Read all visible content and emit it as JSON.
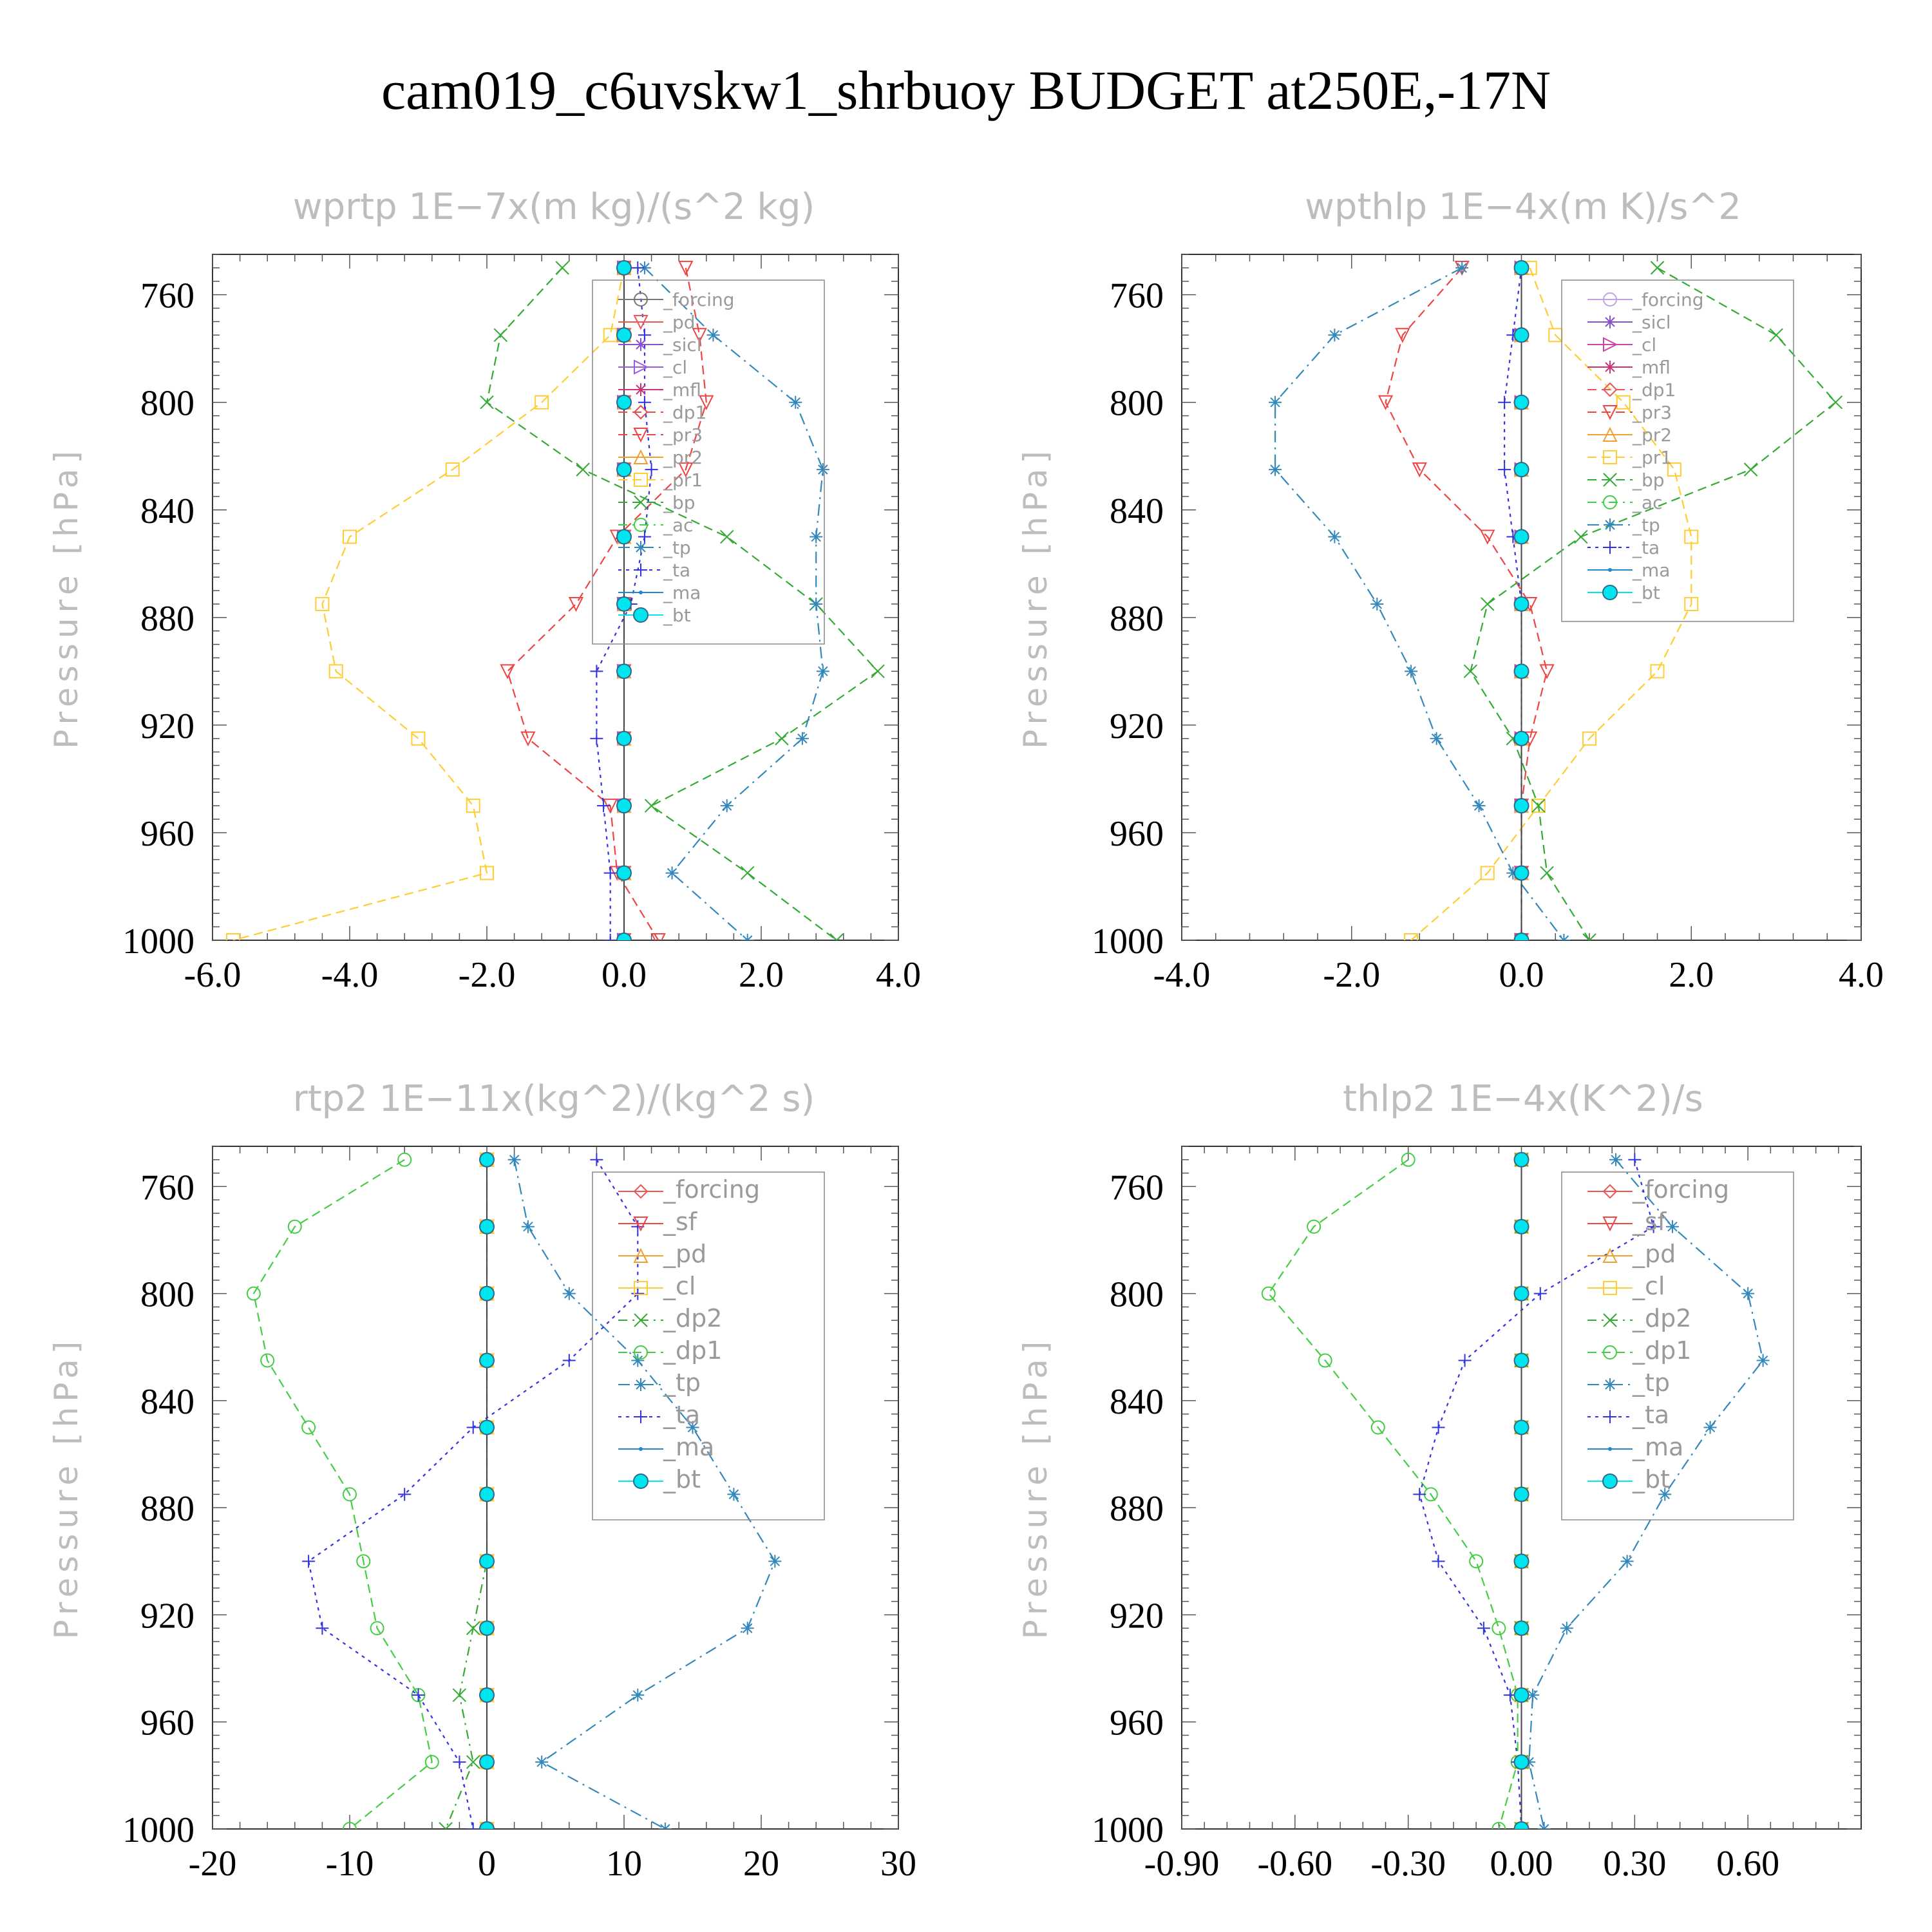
{
  "title": "cam019_c6uvskw1_shrbuoy  BUDGET at250E,-17N",
  "chart_data": [
    {
      "type": "line",
      "title": "wprtp   1E−7x(m kg)/(s^2 kg)",
      "ylabel": "Pressure [hPa]",
      "xlim": [
        -6.0,
        4.0
      ],
      "ylim": [
        1000,
        745
      ],
      "xticks": [
        -6.0,
        -4.0,
        -2.0,
        0.0,
        2.0,
        4.0
      ],
      "xtick_labels": [
        "-6.0",
        "-4.0",
        "-2.0",
        "0.0",
        "2.0",
        "4.0"
      ],
      "yticks": [
        760,
        800,
        840,
        880,
        920,
        960,
        1000
      ],
      "legend_position": "top-right",
      "y": [
        750,
        775,
        800,
        825,
        850,
        875,
        900,
        925,
        950,
        975,
        1000
      ],
      "series": [
        {
          "name": "_forcing",
          "color": "#777777",
          "marker": "circle",
          "values": [
            0,
            0,
            0,
            0,
            0,
            0,
            0,
            0,
            0,
            0,
            0
          ]
        },
        {
          "name": "_pd",
          "color": "#ee5555",
          "marker": "tri-down",
          "values": [
            0,
            0,
            0,
            0,
            0,
            0,
            0,
            0,
            0,
            0,
            0
          ]
        },
        {
          "name": "_sicl",
          "color": "#8a4fcf",
          "marker": "star",
          "values": [
            0,
            0,
            0,
            0,
            0,
            0,
            0,
            0,
            0,
            0,
            0
          ]
        },
        {
          "name": "_cl",
          "color": "#9a5fd8",
          "marker": "tri-right",
          "values": [
            0,
            0,
            0,
            0,
            0,
            0,
            0,
            0,
            0,
            0,
            0
          ]
        },
        {
          "name": "_mfl",
          "color": "#cc3377",
          "marker": "star",
          "values": [
            0,
            0,
            0,
            0,
            0,
            0,
            0,
            0,
            0,
            0,
            0
          ]
        },
        {
          "name": "_dp1",
          "color": "#e84a4a",
          "marker": "diamond",
          "values": [
            0,
            0,
            0,
            0,
            0,
            0,
            0,
            0,
            0,
            0,
            0
          ]
        },
        {
          "name": "_pr3",
          "color": "#ee4444",
          "marker": "tri-down",
          "values": [
            0.9,
            1.1,
            1.2,
            0.9,
            -0.1,
            -0.7,
            -1.7,
            -1.4,
            -0.2,
            -0.1,
            0.5
          ]
        },
        {
          "name": "_pr2",
          "color": "#f0a030",
          "marker": "tri-up",
          "values": [
            0,
            0,
            0,
            0,
            0,
            0,
            0,
            0,
            0,
            0,
            0
          ]
        },
        {
          "name": "_pr1",
          "color": "#ffcc33",
          "marker": "square",
          "values": [
            0,
            -0.2,
            -1.2,
            -2.5,
            -4.0,
            -4.4,
            -4.2,
            -3.0,
            -2.2,
            -2.0,
            -5.7
          ]
        },
        {
          "name": "_bp",
          "color": "#33aa33",
          "marker": "x",
          "values": [
            -0.9,
            -1.8,
            -2.0,
            -0.6,
            1.5,
            2.8,
            3.7,
            2.3,
            0.4,
            1.8,
            3.1
          ]
        },
        {
          "name": "_ac",
          "color": "#44cc44",
          "marker": "circle",
          "values": [
            0,
            0,
            0,
            0,
            0,
            0,
            0,
            0,
            0,
            0,
            0
          ]
        },
        {
          "name": "_tp",
          "color": "#3388bb",
          "marker": "star",
          "values": [
            0.3,
            1.3,
            2.5,
            2.9,
            2.8,
            2.8,
            2.9,
            2.6,
            1.5,
            0.7,
            1.8
          ]
        },
        {
          "name": "_ta",
          "color": "#3333dd",
          "marker": "plus",
          "values": [
            0.2,
            0.3,
            0.3,
            0.4,
            0.3,
            0.1,
            -0.4,
            -0.4,
            -0.3,
            -0.2,
            -0.2
          ]
        },
        {
          "name": "_ma",
          "color": "#2288cc",
          "marker": "dot",
          "values": [
            0,
            0,
            0,
            0,
            0,
            0,
            0,
            0,
            0,
            0,
            0
          ]
        },
        {
          "name": "_bt",
          "color": "#00e5ee",
          "marker": "filled-circle",
          "values": [
            0,
            0,
            0,
            0,
            0,
            0,
            0,
            0,
            0,
            0,
            0
          ]
        }
      ]
    },
    {
      "type": "line",
      "title": "wpthlp   1E−4x(m K)/s^2",
      "ylabel": "Pressure [hPa]",
      "xlim": [
        -4.0,
        4.0
      ],
      "ylim": [
        1000,
        745
      ],
      "xticks": [
        -4.0,
        -2.0,
        0.0,
        2.0,
        4.0
      ],
      "xtick_labels": [
        "-4.0",
        "-2.0",
        "0.0",
        "2.0",
        "4.0"
      ],
      "yticks": [
        760,
        800,
        840,
        880,
        920,
        960,
        1000
      ],
      "legend_position": "top-right",
      "y": [
        750,
        775,
        800,
        825,
        850,
        875,
        900,
        925,
        950,
        975,
        1000
      ],
      "series": [
        {
          "name": "_forcing",
          "color": "#c0a0e0",
          "marker": "circle",
          "values": [
            0,
            0,
            0,
            0,
            0,
            0,
            0,
            0,
            0,
            0,
            0
          ]
        },
        {
          "name": "_sicl",
          "color": "#8a4fcf",
          "marker": "star",
          "values": [
            0,
            0,
            0,
            0,
            0,
            0,
            0,
            0,
            0,
            0,
            0
          ]
        },
        {
          "name": "_cl",
          "color": "#cc44aa",
          "marker": "tri-right",
          "values": [
            0,
            0,
            0,
            0,
            0,
            0,
            0,
            0,
            0,
            0,
            0
          ]
        },
        {
          "name": "_mfl",
          "color": "#cc3377",
          "marker": "star",
          "values": [
            0,
            0,
            0,
            0,
            0,
            0,
            0,
            0,
            0,
            0,
            0
          ]
        },
        {
          "name": "_dp1",
          "color": "#ee5555",
          "marker": "diamond",
          "values": [
            0,
            0,
            0,
            0,
            0,
            0,
            0,
            0,
            0,
            0,
            0
          ]
        },
        {
          "name": "_pr3",
          "color": "#ee4444",
          "marker": "tri-down",
          "values": [
            -0.7,
            -1.4,
            -1.6,
            -1.2,
            -0.4,
            0.1,
            0.3,
            0.1,
            0,
            0,
            0
          ]
        },
        {
          "name": "_pr2",
          "color": "#f0a030",
          "marker": "tri-up",
          "values": [
            0,
            0,
            0,
            0,
            0,
            0,
            0,
            0,
            0,
            0,
            0
          ]
        },
        {
          "name": "_pr1",
          "color": "#ffcc33",
          "marker": "square",
          "values": [
            0.1,
            0.4,
            1.2,
            1.8,
            2.0,
            2.0,
            1.6,
            0.8,
            0.2,
            -0.4,
            -1.3
          ]
        },
        {
          "name": "_bp",
          "color": "#33aa33",
          "marker": "x",
          "values": [
            1.6,
            3.0,
            3.7,
            2.7,
            0.7,
            -0.4,
            -0.6,
            -0.1,
            0.2,
            0.3,
            0.8
          ]
        },
        {
          "name": "_ac",
          "color": "#44cc44",
          "marker": "circle",
          "values": [
            0,
            0,
            0,
            0,
            0,
            0,
            0,
            0,
            0,
            0,
            0
          ]
        },
        {
          "name": "_tp",
          "color": "#3388bb",
          "marker": "star",
          "values": [
            -0.7,
            -2.2,
            -2.9,
            -2.9,
            -2.2,
            -1.7,
            -1.3,
            -1.0,
            -0.5,
            -0.1,
            0.5
          ]
        },
        {
          "name": "_ta",
          "color": "#3333dd",
          "marker": "plus",
          "values": [
            0,
            -0.1,
            -0.2,
            -0.2,
            -0.1,
            0,
            0,
            0,
            0,
            0,
            0
          ]
        },
        {
          "name": "_ma",
          "color": "#2288cc",
          "marker": "dot",
          "values": [
            0,
            0,
            0,
            0,
            0,
            0,
            0,
            0,
            0,
            0,
            0
          ]
        },
        {
          "name": "_bt",
          "color": "#00e5ee",
          "marker": "filled-circle",
          "values": [
            0,
            0,
            0,
            0,
            0,
            0,
            0,
            0,
            0,
            0,
            0
          ]
        }
      ]
    },
    {
      "type": "line",
      "title": "rtp2   1E−11x(kg^2)/(kg^2 s)",
      "ylabel": "Pressure [hPa]",
      "xlim": [
        -20,
        30
      ],
      "ylim": [
        1000,
        745
      ],
      "xticks": [
        -20,
        -10,
        0,
        10,
        20,
        30
      ],
      "xtick_labels": [
        "-20",
        "-10",
        "0",
        "10",
        "20",
        "30"
      ],
      "yticks": [
        760,
        800,
        840,
        880,
        920,
        960,
        1000
      ],
      "legend_position": "top-right",
      "y": [
        750,
        775,
        800,
        825,
        850,
        875,
        900,
        925,
        950,
        975,
        1000
      ],
      "series": [
        {
          "name": "_forcing",
          "color": "#ee5555",
          "marker": "diamond",
          "values": [
            0,
            0,
            0,
            0,
            0,
            0,
            0,
            0,
            0,
            0,
            0
          ]
        },
        {
          "name": "_sf",
          "color": "#ee4444",
          "marker": "tri-down",
          "values": [
            0,
            0,
            0,
            0,
            0,
            0,
            0,
            0,
            0,
            0,
            0
          ]
        },
        {
          "name": "_pd",
          "color": "#f0a030",
          "marker": "tri-up",
          "values": [
            0,
            0,
            0,
            0,
            0,
            0,
            0,
            0,
            0,
            0,
            0
          ]
        },
        {
          "name": "_cl",
          "color": "#ffcc33",
          "marker": "square",
          "values": [
            0,
            0,
            0,
            0,
            0,
            0,
            0,
            0,
            0,
            0,
            0
          ]
        },
        {
          "name": "_dp2",
          "color": "#33aa33",
          "marker": "x",
          "values": [
            0,
            0,
            0,
            0,
            0,
            0,
            0,
            -1,
            -2,
            -1,
            -3
          ]
        },
        {
          "name": "_dp1",
          "color": "#44cc44",
          "marker": "circle",
          "values": [
            -6,
            -14,
            -17,
            -16,
            -13,
            -10,
            -9,
            -8,
            -5,
            -4,
            -10
          ]
        },
        {
          "name": "_tp",
          "color": "#3388bb",
          "marker": "star",
          "values": [
            2,
            3,
            6,
            11,
            15,
            18,
            21,
            19,
            11,
            4,
            13
          ]
        },
        {
          "name": "_ta",
          "color": "#3333dd",
          "marker": "plus",
          "values": [
            8,
            11,
            11,
            6,
            -1,
            -6,
            -13,
            -12,
            -5,
            -2,
            -1
          ]
        },
        {
          "name": "_ma",
          "color": "#2288cc",
          "marker": "dot",
          "values": [
            0,
            0,
            0,
            0,
            0,
            0,
            0,
            0,
            0,
            0,
            0
          ]
        },
        {
          "name": "_bt",
          "color": "#00e5ee",
          "marker": "filled-circle",
          "values": [
            0,
            0,
            0,
            0,
            0,
            0,
            0,
            0,
            0,
            0,
            0
          ]
        }
      ]
    },
    {
      "type": "line",
      "title": "thlp2   1E−4x(K^2)/s",
      "ylabel": "Pressure [hPa]",
      "xlim": [
        -0.9,
        0.9
      ],
      "ylim": [
        1000,
        745
      ],
      "xticks": [
        -0.9,
        -0.6,
        -0.3,
        0.0,
        0.3,
        0.6
      ],
      "xtick_labels": [
        "-0.90",
        "-0.60",
        "-0.30",
        "0.00",
        "0.30",
        "0.60"
      ],
      "yticks": [
        760,
        800,
        840,
        880,
        920,
        960,
        1000
      ],
      "legend_position": "top-right",
      "y": [
        750,
        775,
        800,
        825,
        850,
        875,
        900,
        925,
        950,
        975,
        1000
      ],
      "series": [
        {
          "name": "_forcing",
          "color": "#ee5555",
          "marker": "diamond",
          "values": [
            0,
            0,
            0,
            0,
            0,
            0,
            0,
            0,
            0,
            0,
            0
          ]
        },
        {
          "name": "_sf",
          "color": "#ee4444",
          "marker": "tri-down",
          "values": [
            0,
            0,
            0,
            0,
            0,
            0,
            0,
            0,
            0,
            0,
            0
          ]
        },
        {
          "name": "_pd",
          "color": "#f0a030",
          "marker": "tri-up",
          "values": [
            0,
            0,
            0,
            0,
            0,
            0,
            0,
            0,
            0,
            0,
            0
          ]
        },
        {
          "name": "_cl",
          "color": "#ffcc33",
          "marker": "square",
          "values": [
            0,
            0,
            0,
            0,
            0,
            0,
            0,
            0,
            0,
            0,
            0
          ]
        },
        {
          "name": "_dp2",
          "color": "#33aa33",
          "marker": "x",
          "values": [
            0,
            0,
            0,
            0,
            0,
            0,
            0,
            0,
            0,
            0,
            0
          ]
        },
        {
          "name": "_dp1",
          "color": "#44cc44",
          "marker": "circle",
          "values": [
            -0.3,
            -0.55,
            -0.67,
            -0.52,
            -0.38,
            -0.24,
            -0.12,
            -0.06,
            -0.01,
            -0.01,
            -0.06
          ]
        },
        {
          "name": "_tp",
          "color": "#3388bb",
          "marker": "star",
          "values": [
            0.25,
            0.4,
            0.6,
            0.64,
            0.5,
            0.38,
            0.28,
            0.12,
            0.03,
            0.02,
            0.06
          ]
        },
        {
          "name": "_ta",
          "color": "#3333dd",
          "marker": "plus",
          "values": [
            0.3,
            0.35,
            0.05,
            -0.15,
            -0.22,
            -0.27,
            -0.22,
            -0.1,
            -0.03,
            -0.01,
            0
          ]
        },
        {
          "name": "_ma",
          "color": "#2288cc",
          "marker": "dot",
          "values": [
            0,
            0,
            0,
            0,
            0,
            0,
            0,
            0,
            0,
            0,
            0
          ]
        },
        {
          "name": "_bt",
          "color": "#00e5ee",
          "marker": "filled-circle",
          "values": [
            0,
            0,
            0,
            0,
            0,
            0,
            0,
            0,
            0,
            0,
            0
          ]
        }
      ]
    }
  ]
}
